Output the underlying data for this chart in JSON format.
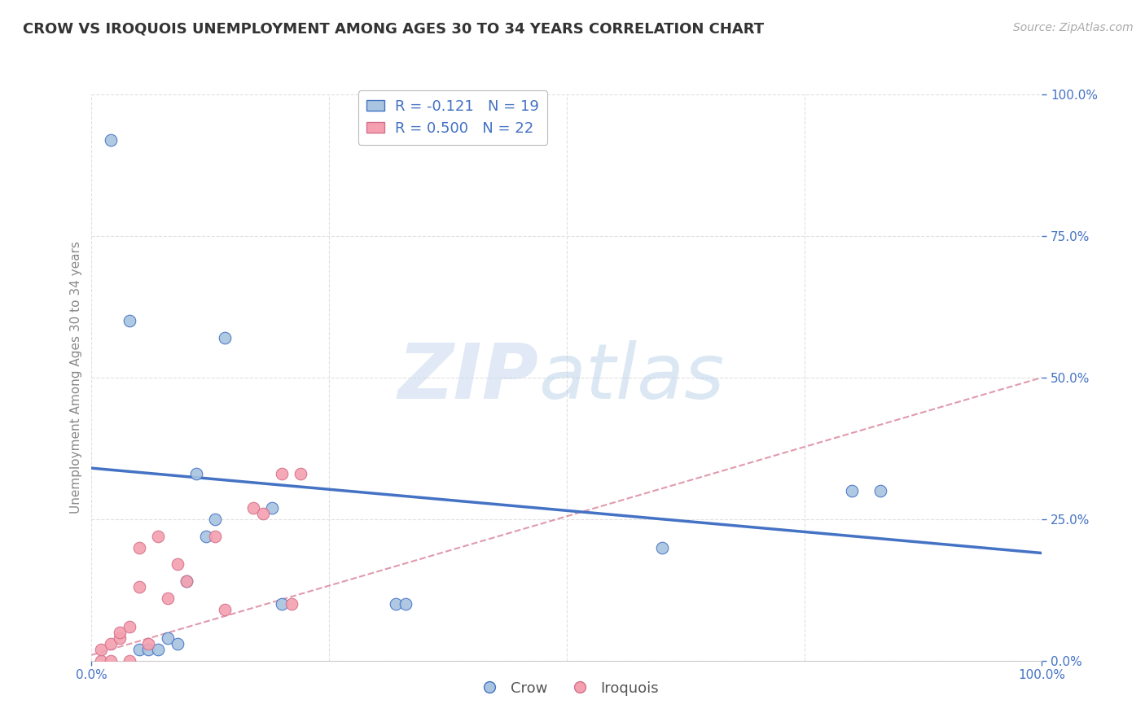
{
  "title": "CROW VS IROQUOIS UNEMPLOYMENT AMONG AGES 30 TO 34 YEARS CORRELATION CHART",
  "source": "Source: ZipAtlas.com",
  "ylabel": "Unemployment Among Ages 30 to 34 years",
  "xlim": [
    0.0,
    1.0
  ],
  "ylim": [
    0.0,
    1.0
  ],
  "ytick_vals": [
    0.0,
    0.25,
    0.5,
    0.75,
    1.0
  ],
  "crow_color": "#a8c4e0",
  "iroquois_color": "#f4a0b0",
  "crow_line_color": "#4472c4",
  "iroquois_line_color": "#d4708a",
  "crow_R": -0.121,
  "crow_N": 19,
  "iroquois_R": 0.5,
  "iroquois_N": 22,
  "watermark_zip": "ZIP",
  "watermark_atlas": "atlas",
  "background_color": "#ffffff",
  "grid_color": "#e0e0e0",
  "crow_scatter_x": [
    0.02,
    0.04,
    0.05,
    0.06,
    0.07,
    0.08,
    0.09,
    0.1,
    0.11,
    0.12,
    0.13,
    0.14,
    0.19,
    0.2,
    0.32,
    0.33,
    0.6,
    0.8,
    0.83
  ],
  "crow_scatter_y": [
    0.92,
    0.6,
    0.02,
    0.02,
    0.02,
    0.04,
    0.03,
    0.14,
    0.33,
    0.22,
    0.25,
    0.57,
    0.27,
    0.1,
    0.1,
    0.1,
    0.2,
    0.3,
    0.3
  ],
  "iroquois_scatter_x": [
    0.01,
    0.01,
    0.02,
    0.02,
    0.03,
    0.03,
    0.04,
    0.04,
    0.05,
    0.05,
    0.06,
    0.07,
    0.08,
    0.09,
    0.1,
    0.13,
    0.14,
    0.17,
    0.18,
    0.2,
    0.21,
    0.22
  ],
  "iroquois_scatter_y": [
    0.0,
    0.02,
    0.0,
    0.03,
    0.04,
    0.05,
    0.0,
    0.06,
    0.13,
    0.2,
    0.03,
    0.22,
    0.11,
    0.17,
    0.14,
    0.22,
    0.09,
    0.27,
    0.26,
    0.33,
    0.1,
    0.33
  ],
  "crow_trendline_x": [
    0.0,
    1.0
  ],
  "crow_trendline_y": [
    0.34,
    0.19
  ],
  "iroquois_trendline_x": [
    0.0,
    1.0
  ],
  "iroquois_trendline_y": [
    0.01,
    0.5
  ]
}
